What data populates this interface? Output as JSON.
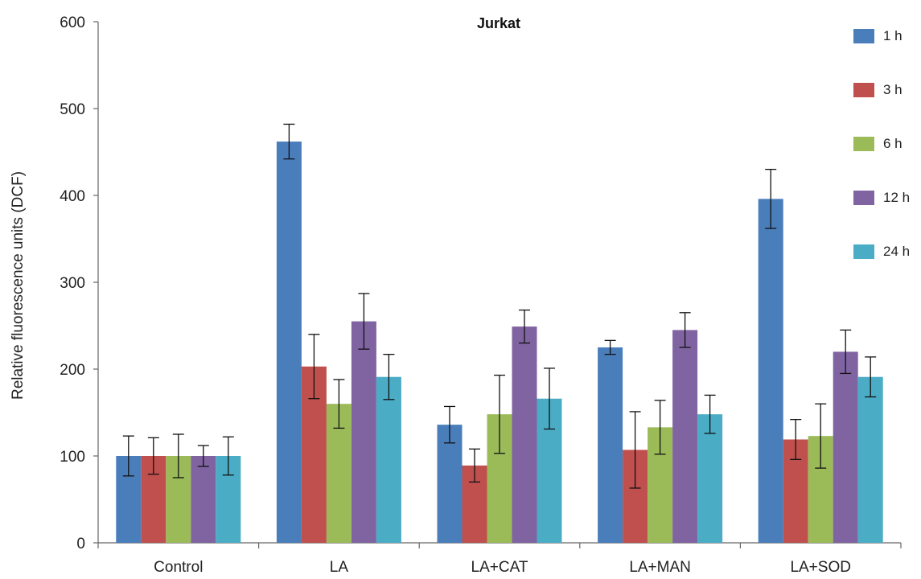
{
  "chart_data": {
    "type": "bar",
    "title": "Jurkat",
    "xlabel": "",
    "ylabel": "Relative fluorescence units (DCF)",
    "ylim": [
      0,
      600
    ],
    "yticks": [
      0,
      100,
      200,
      300,
      400,
      500,
      600
    ],
    "grid": false,
    "legend_position": "right",
    "categories": [
      "Control",
      "LA",
      "LA+CAT",
      "LA+MAN",
      "LA+SOD"
    ],
    "series": [
      {
        "name": "1 h",
        "color": "#4a7ebb",
        "values": [
          100,
          462,
          136,
          225,
          396
        ],
        "errors": [
          23,
          20,
          21,
          8,
          34
        ]
      },
      {
        "name": " 3 h",
        "color": "#c0504d",
        "values": [
          100,
          203,
          89,
          107,
          119
        ],
        "errors": [
          21,
          37,
          19,
          44,
          23
        ]
      },
      {
        "name": "6 h",
        "color": "#9bbb59",
        "values": [
          100,
          160,
          148,
          133,
          123
        ],
        "errors": [
          25,
          28,
          45,
          31,
          37
        ]
      },
      {
        "name": "12 h",
        "color": "#8064a2",
        "values": [
          100,
          255,
          249,
          245,
          220
        ],
        "errors": [
          12,
          32,
          19,
          20,
          25
        ]
      },
      {
        "name": "24 h",
        "color": "#4bacc6",
        "values": [
          100,
          191,
          166,
          148,
          191
        ],
        "errors": [
          22,
          26,
          35,
          22,
          23
        ]
      }
    ]
  }
}
